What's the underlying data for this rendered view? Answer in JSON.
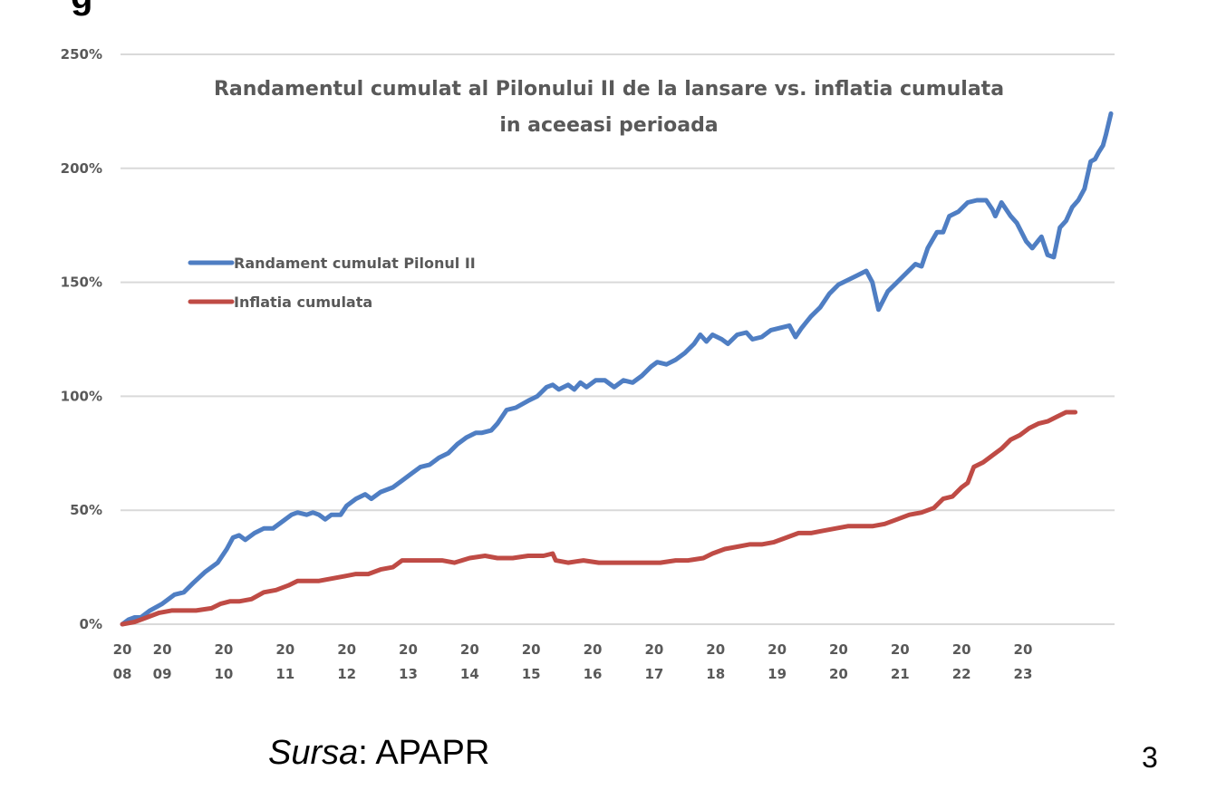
{
  "header_fragment": "g",
  "source": {
    "label": "Sursa",
    "separator": ": ",
    "value": "APAPR"
  },
  "page_number": "3",
  "chart_data": {
    "type": "line",
    "title": [
      "Randamentul cumulat al Pilonului II de la lansare vs. inflatia cumulata",
      "in aceeasi perioada"
    ],
    "xlabel": "",
    "ylabel": "",
    "x_range": [
      2008.0,
      2023.9
    ],
    "ylim": [
      0,
      250
    ],
    "y_ticks": [
      0,
      50,
      100,
      150,
      200,
      250
    ],
    "y_tick_labels": [
      "0%",
      "50%",
      "100%",
      "150%",
      "200%",
      "250%"
    ],
    "x_ticks": [
      {
        "year": 2008,
        "top": "20",
        "bottom": "08"
      },
      {
        "year": 2008.65,
        "top": "20",
        "bottom": "09"
      },
      {
        "year": 2009.65,
        "top": "20",
        "bottom": "10"
      },
      {
        "year": 2010.65,
        "top": "20",
        "bottom": "11"
      },
      {
        "year": 2011.65,
        "top": "20",
        "bottom": "12"
      },
      {
        "year": 2012.65,
        "top": "20",
        "bottom": "13"
      },
      {
        "year": 2013.65,
        "top": "20",
        "bottom": "14"
      },
      {
        "year": 2014.65,
        "top": "20",
        "bottom": "15"
      },
      {
        "year": 2015.65,
        "top": "20",
        "bottom": "16"
      },
      {
        "year": 2016.65,
        "top": "20",
        "bottom": "17"
      },
      {
        "year": 2017.65,
        "top": "20",
        "bottom": "18"
      },
      {
        "year": 2018.65,
        "top": "20",
        "bottom": "19"
      },
      {
        "year": 2019.65,
        "top": "20",
        "bottom": "20"
      },
      {
        "year": 2020.65,
        "top": "20",
        "bottom": "21"
      },
      {
        "year": 2021.65,
        "top": "20",
        "bottom": "22"
      },
      {
        "year": 2022.65,
        "top": "20",
        "bottom": "23"
      }
    ],
    "grid": true,
    "legend_position": "left, upper-middle",
    "series": [
      {
        "name": "Randament cumulat Pilonul II",
        "color": "#4f7ec3",
        "points": [
          [
            2008.0,
            0
          ],
          [
            2008.1,
            2
          ],
          [
            2008.2,
            3
          ],
          [
            2008.3,
            3
          ],
          [
            2008.45,
            6
          ],
          [
            2008.65,
            9
          ],
          [
            2008.85,
            13
          ],
          [
            2009.0,
            14
          ],
          [
            2009.15,
            18
          ],
          [
            2009.35,
            23
          ],
          [
            2009.55,
            27
          ],
          [
            2009.7,
            33
          ],
          [
            2009.8,
            38
          ],
          [
            2009.9,
            39
          ],
          [
            2010.0,
            37
          ],
          [
            2010.15,
            40
          ],
          [
            2010.3,
            42
          ],
          [
            2010.45,
            42
          ],
          [
            2010.6,
            45
          ],
          [
            2010.75,
            48
          ],
          [
            2010.85,
            49
          ],
          [
            2011.0,
            48
          ],
          [
            2011.1,
            49
          ],
          [
            2011.2,
            48
          ],
          [
            2011.3,
            46
          ],
          [
            2011.4,
            48
          ],
          [
            2011.55,
            48
          ],
          [
            2011.65,
            52
          ],
          [
            2011.8,
            55
          ],
          [
            2011.95,
            57
          ],
          [
            2012.05,
            55
          ],
          [
            2012.2,
            58
          ],
          [
            2012.4,
            60
          ],
          [
            2012.55,
            63
          ],
          [
            2012.7,
            66
          ],
          [
            2012.85,
            69
          ],
          [
            2013.0,
            70
          ],
          [
            2013.15,
            73
          ],
          [
            2013.3,
            75
          ],
          [
            2013.45,
            79
          ],
          [
            2013.6,
            82
          ],
          [
            2013.75,
            84
          ],
          [
            2013.85,
            84
          ],
          [
            2014.0,
            85
          ],
          [
            2014.1,
            88
          ],
          [
            2014.25,
            94
          ],
          [
            2014.4,
            95
          ],
          [
            2014.6,
            98
          ],
          [
            2014.75,
            100
          ],
          [
            2014.9,
            104
          ],
          [
            2015.0,
            105
          ],
          [
            2015.1,
            103
          ],
          [
            2015.25,
            105
          ],
          [
            2015.35,
            103
          ],
          [
            2015.45,
            106
          ],
          [
            2015.55,
            104
          ],
          [
            2015.7,
            107
          ],
          [
            2015.85,
            107
          ],
          [
            2016.0,
            104
          ],
          [
            2016.15,
            107
          ],
          [
            2016.3,
            106
          ],
          [
            2016.45,
            109
          ],
          [
            2016.6,
            113
          ],
          [
            2016.7,
            115
          ],
          [
            2016.85,
            114
          ],
          [
            2017.0,
            116
          ],
          [
            2017.15,
            119
          ],
          [
            2017.3,
            123
          ],
          [
            2017.4,
            127
          ],
          [
            2017.5,
            124
          ],
          [
            2017.6,
            127
          ],
          [
            2017.75,
            125
          ],
          [
            2017.85,
            123
          ],
          [
            2018.0,
            127
          ],
          [
            2018.15,
            128
          ],
          [
            2018.25,
            125
          ],
          [
            2018.4,
            126
          ],
          [
            2018.55,
            129
          ],
          [
            2018.7,
            130
          ],
          [
            2018.85,
            131
          ],
          [
            2018.95,
            126
          ],
          [
            2019.05,
            130
          ],
          [
            2019.2,
            135
          ],
          [
            2019.35,
            139
          ],
          [
            2019.5,
            145
          ],
          [
            2019.65,
            149
          ],
          [
            2019.8,
            151
          ],
          [
            2019.95,
            153
          ],
          [
            2020.1,
            155
          ],
          [
            2020.2,
            150
          ],
          [
            2020.3,
            138
          ],
          [
            2020.45,
            146
          ],
          [
            2020.6,
            150
          ],
          [
            2020.75,
            154
          ],
          [
            2020.9,
            158
          ],
          [
            2021.0,
            157
          ],
          [
            2021.1,
            165
          ],
          [
            2021.25,
            172
          ],
          [
            2021.35,
            172
          ],
          [
            2021.45,
            179
          ],
          [
            2021.6,
            181
          ],
          [
            2021.75,
            185
          ],
          [
            2021.9,
            186
          ],
          [
            2022.05,
            186
          ],
          [
            2022.15,
            182
          ],
          [
            2022.2,
            179
          ],
          [
            2022.3,
            185
          ],
          [
            2022.45,
            179
          ],
          [
            2022.55,
            176
          ],
          [
            2022.7,
            168
          ],
          [
            2022.8,
            165
          ],
          [
            2022.95,
            170
          ],
          [
            2023.05,
            162
          ],
          [
            2023.15,
            161
          ],
          [
            2023.25,
            174
          ],
          [
            2023.35,
            177
          ],
          [
            2023.45,
            183
          ],
          [
            2023.55,
            186
          ],
          [
            2023.65,
            191
          ],
          [
            2023.75,
            203
          ],
          [
            2023.82,
            204
          ],
          [
            2023.88,
            207
          ],
          [
            2023.95,
            210
          ],
          [
            2024.0,
            215
          ],
          [
            2024.08,
            224
          ]
        ]
      },
      {
        "name": "Inflatia cumulata",
        "color": "#bf4b45",
        "points": [
          [
            2008.0,
            0
          ],
          [
            2008.2,
            1
          ],
          [
            2008.4,
            3
          ],
          [
            2008.6,
            5
          ],
          [
            2008.8,
            6
          ],
          [
            2009.0,
            6
          ],
          [
            2009.2,
            6
          ],
          [
            2009.45,
            7
          ],
          [
            2009.6,
            9
          ],
          [
            2009.75,
            10
          ],
          [
            2009.9,
            10
          ],
          [
            2010.1,
            11
          ],
          [
            2010.3,
            14
          ],
          [
            2010.5,
            15
          ],
          [
            2010.7,
            17
          ],
          [
            2010.85,
            19
          ],
          [
            2011.0,
            19
          ],
          [
            2011.2,
            19
          ],
          [
            2011.4,
            20
          ],
          [
            2011.6,
            21
          ],
          [
            2011.8,
            22
          ],
          [
            2012.0,
            22
          ],
          [
            2012.2,
            24
          ],
          [
            2012.4,
            25
          ],
          [
            2012.55,
            28
          ],
          [
            2012.8,
            28
          ],
          [
            2013.0,
            28
          ],
          [
            2013.2,
            28
          ],
          [
            2013.4,
            27
          ],
          [
            2013.65,
            29
          ],
          [
            2013.9,
            30
          ],
          [
            2014.1,
            29
          ],
          [
            2014.35,
            29
          ],
          [
            2014.6,
            30
          ],
          [
            2014.85,
            30
          ],
          [
            2015.0,
            31
          ],
          [
            2015.05,
            28
          ],
          [
            2015.25,
            27
          ],
          [
            2015.5,
            28
          ],
          [
            2015.75,
            27
          ],
          [
            2016.0,
            27
          ],
          [
            2016.25,
            27
          ],
          [
            2016.5,
            27
          ],
          [
            2016.75,
            27
          ],
          [
            2017.0,
            28
          ],
          [
            2017.2,
            28
          ],
          [
            2017.45,
            29
          ],
          [
            2017.6,
            31
          ],
          [
            2017.8,
            33
          ],
          [
            2018.0,
            34
          ],
          [
            2018.2,
            35
          ],
          [
            2018.4,
            35
          ],
          [
            2018.6,
            36
          ],
          [
            2018.8,
            38
          ],
          [
            2019.0,
            40
          ],
          [
            2019.2,
            40
          ],
          [
            2019.4,
            41
          ],
          [
            2019.6,
            42
          ],
          [
            2019.8,
            43
          ],
          [
            2020.0,
            43
          ],
          [
            2020.2,
            43
          ],
          [
            2020.4,
            44
          ],
          [
            2020.6,
            46
          ],
          [
            2020.8,
            48
          ],
          [
            2021.0,
            49
          ],
          [
            2021.2,
            51
          ],
          [
            2021.35,
            55
          ],
          [
            2021.5,
            56
          ],
          [
            2021.65,
            60
          ],
          [
            2021.75,
            62
          ],
          [
            2021.85,
            69
          ],
          [
            2022.0,
            71
          ],
          [
            2022.15,
            74
          ],
          [
            2022.3,
            77
          ],
          [
            2022.45,
            81
          ],
          [
            2022.6,
            83
          ],
          [
            2022.75,
            86
          ],
          [
            2022.9,
            88
          ],
          [
            2023.05,
            89
          ],
          [
            2023.2,
            91
          ],
          [
            2023.35,
            93
          ],
          [
            2023.5,
            93
          ]
        ]
      }
    ]
  }
}
